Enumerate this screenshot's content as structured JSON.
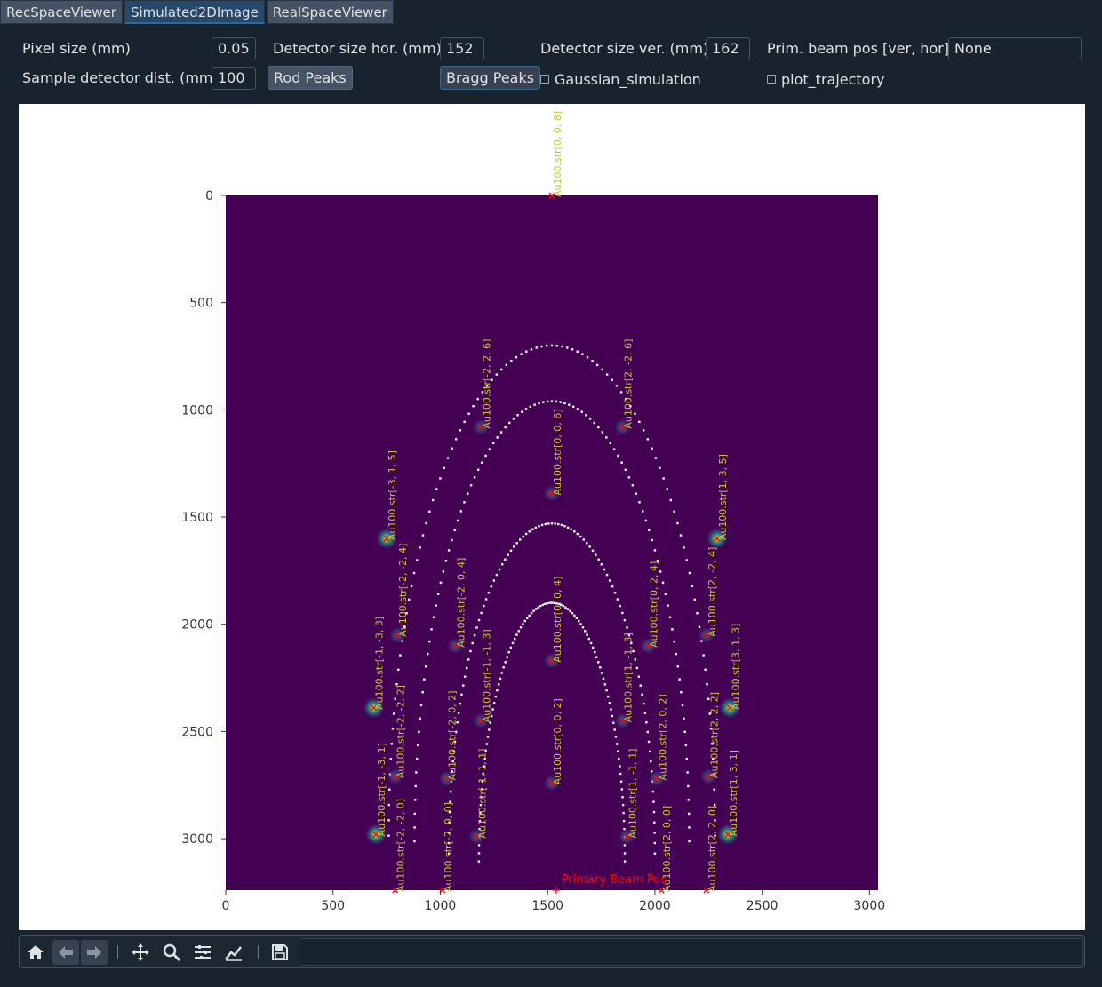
{
  "tabs": [
    "RecSpaceViewer",
    "Simulated2DImage",
    "RealSpaceViewer"
  ],
  "active_tab": 1,
  "controls": {
    "pixel_size_label": "Pixel size (mm)",
    "pixel_size_value": "0.05",
    "det_hor_label": "Detector size hor. (mm)",
    "det_hor_value": "152",
    "det_ver_label": "Detector size ver. (mm)",
    "det_ver_value": "162",
    "beam_pos_label": "Prim. beam pos [ver, hor]",
    "beam_pos_value": "None",
    "sample_dist_label": "Sample detector dist. (mm)",
    "sample_dist_value": "100",
    "rod_peaks_label": "Rod Peaks",
    "bragg_peaks_label": "Bragg Peaks",
    "gaussian_label": "Gaussian_simulation",
    "gaussian_checked": false,
    "trajectory_label": "plot_trajectory",
    "trajectory_checked": false
  },
  "colors": {
    "window_bg": "#19232d",
    "image_bg": "#440154",
    "trajectory": "#ffffff",
    "peak_marker": "#ff0000",
    "peak_label": "#c8c832",
    "beam_label": "#ff0000"
  },
  "chart_data": {
    "type": "scatter",
    "title": "",
    "xlabel": "",
    "ylabel": "",
    "xlim": [
      0,
      3040
    ],
    "ylim": [
      3240,
      0
    ],
    "xticks": [
      0,
      500,
      1000,
      1500,
      2000,
      2500,
      3000
    ],
    "yticks": [
      0,
      500,
      1000,
      1500,
      2000,
      2500,
      3000
    ],
    "image_colormap": "viridis",
    "primary_beam": {
      "x": 1540,
      "y": 3240,
      "label": "Primary Beam Pos"
    },
    "peaks": [
      {
        "label": "Au100.str[0, 0, 8]",
        "x": 1520,
        "y": 0,
        "glow": 0
      },
      {
        "label": "Au100.str[-2, 2, 6]",
        "x": 1190,
        "y": 1080,
        "glow": 1
      },
      {
        "label": "Au100.str[2, -2, 6]",
        "x": 1850,
        "y": 1080,
        "glow": 1
      },
      {
        "label": "Au100.str[0, 0, 6]",
        "x": 1520,
        "y": 1390,
        "glow": 1
      },
      {
        "label": "Au100.str[-3, 1, 5]",
        "x": 750,
        "y": 1600,
        "glow": 2
      },
      {
        "label": "Au100.str[1, 3, 5]",
        "x": 2290,
        "y": 1600,
        "glow": 2
      },
      {
        "label": "Au100.str[-2, -2, 4]",
        "x": 800,
        "y": 2050,
        "glow": 1
      },
      {
        "label": "Au100.str[-2, 0, 4]",
        "x": 1070,
        "y": 2100,
        "glow": 1
      },
      {
        "label": "Au100.str[0, 2, 4]",
        "x": 1970,
        "y": 2100,
        "glow": 1
      },
      {
        "label": "Au100.str[2, -2, 4]",
        "x": 2240,
        "y": 2050,
        "glow": 1
      },
      {
        "label": "Au100.str[0, 0, 4]",
        "x": 1520,
        "y": 2170,
        "glow": 1
      },
      {
        "label": "Au100.str[-1, -3, 3]",
        "x": 690,
        "y": 2390,
        "glow": 2
      },
      {
        "label": "Au100.str[-1, -1, 3]",
        "x": 1190,
        "y": 2450,
        "glow": 1
      },
      {
        "label": "Au100.str[1, -1, 3]",
        "x": 1850,
        "y": 2450,
        "glow": 1
      },
      {
        "label": "Au100.str[3, 1, 3]",
        "x": 2350,
        "y": 2390,
        "glow": 2
      },
      {
        "label": "Au100.str[-2, -2, 2]",
        "x": 790,
        "y": 2710,
        "glow": 1
      },
      {
        "label": "Au100.str[-2, 0, 2]",
        "x": 1030,
        "y": 2720,
        "glow": 1
      },
      {
        "label": "Au100.str[0, 0, 2]",
        "x": 1520,
        "y": 2740,
        "glow": 1
      },
      {
        "label": "Au100.str[2, 0, 2]",
        "x": 2010,
        "y": 2720,
        "glow": 1
      },
      {
        "label": "Au100.str[2, 2, 2]",
        "x": 2250,
        "y": 2710,
        "glow": 1
      },
      {
        "label": "Au100.str[-1, -3, 1]",
        "x": 700,
        "y": 2980,
        "glow": 2
      },
      {
        "label": "Au100.str[-1, 1, 1]",
        "x": 1170,
        "y": 2990,
        "glow": 1
      },
      {
        "label": "Au100.str[1, -1, 1]",
        "x": 1870,
        "y": 2990,
        "glow": 1
      },
      {
        "label": "Au100.str[1, 3, 1]",
        "x": 2340,
        "y": 2980,
        "glow": 2
      },
      {
        "label": "Au100.str[-2, -2, 0]",
        "x": 790,
        "y": 3240,
        "glow": 0
      },
      {
        "label": "Au100.str[-2, 0, 0]",
        "x": 1010,
        "y": 3240,
        "glow": 0
      },
      {
        "label": "Au100.str[2, 0, 0]",
        "x": 2030,
        "y": 3240,
        "glow": 0
      },
      {
        "label": "Au100.str[2, 2, 0]",
        "x": 2240,
        "y": 3240,
        "glow": 0
      }
    ],
    "trajectories": [
      {
        "type": "arch",
        "cx": 1520,
        "top": 700,
        "half_width": 760,
        "bottom": 3240
      },
      {
        "type": "arch",
        "cx": 1520,
        "top": 960,
        "half_width": 640,
        "bottom": 3240
      },
      {
        "type": "arch",
        "cx": 1520,
        "top": 1530,
        "half_width": 480,
        "bottom": 3240
      },
      {
        "type": "arch",
        "cx": 1520,
        "top": 1900,
        "half_width": 340,
        "bottom": 3240
      }
    ]
  },
  "toolbar": {
    "icons": [
      "home-icon",
      "back-icon",
      "forward-icon",
      "pan-icon",
      "zoom-icon",
      "subplots-icon",
      "customize-icon",
      "save-icon"
    ],
    "message": ""
  }
}
